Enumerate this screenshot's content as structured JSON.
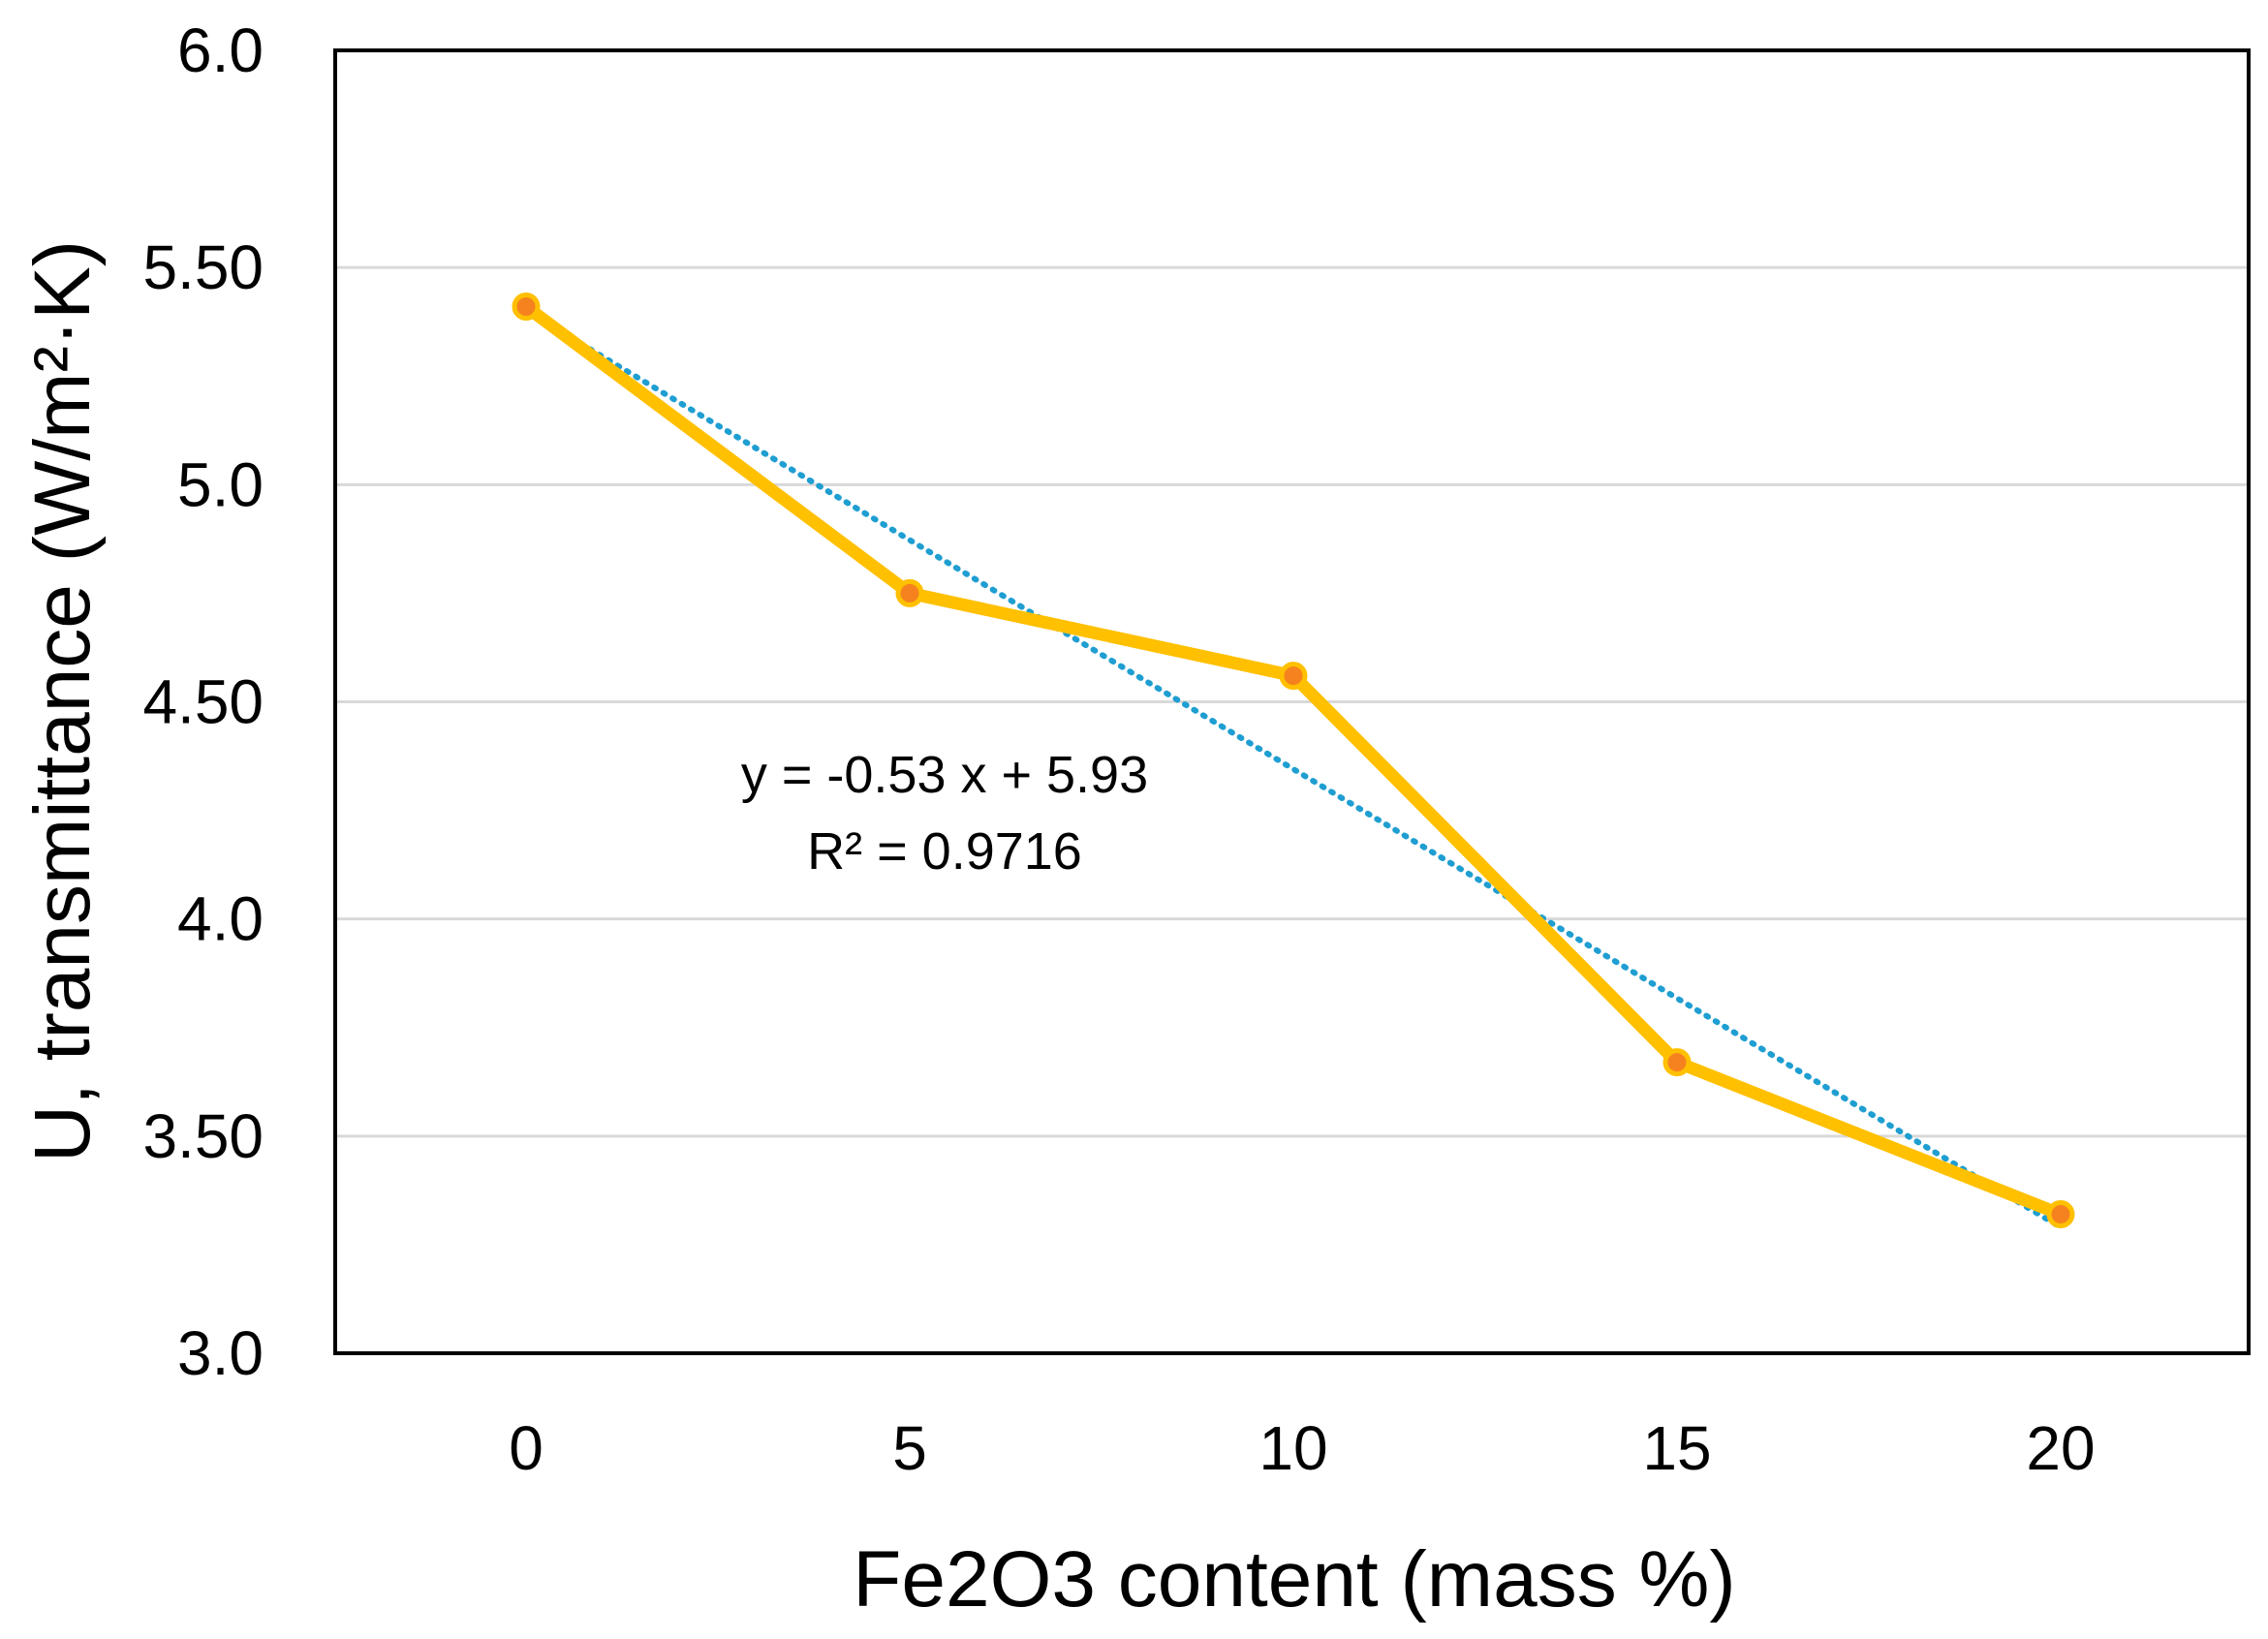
{
  "chart_data": {
    "type": "line",
    "title": "",
    "xlabel": "Fe2O3 content (mass %)",
    "ylabel": "U, transmittance (W/m²·K)",
    "categories": [
      "0",
      "5",
      "10",
      "15",
      "20"
    ],
    "x": [
      0,
      5,
      10,
      15,
      20
    ],
    "series": [
      {
        "name": "U, transmittance",
        "values": [
          5.41,
          4.75,
          4.56,
          3.67,
          3.32
        ],
        "color": "#FFC000",
        "marker_color": "#F5821F"
      }
    ],
    "trendline": {
      "type": "linear",
      "slope": -0.53,
      "intercept": 5.93,
      "equation_label": "y = -0.53 x + 5.93",
      "r2_label": "R² = 0.9716",
      "color": "#1F9ED1",
      "endpoints": [
        5.4,
        3.29
      ]
    },
    "ylim": [
      3.0,
      6.0
    ],
    "yticks": [
      3.0,
      3.5,
      4.0,
      4.5,
      5.0,
      5.5,
      6.0
    ],
    "ytick_labels": [
      "3.0",
      "3.50",
      "4.0",
      "4.50",
      "5.0",
      "5.50",
      "6.0"
    ],
    "grid": true,
    "gridline_color": "#D9D9D9"
  }
}
